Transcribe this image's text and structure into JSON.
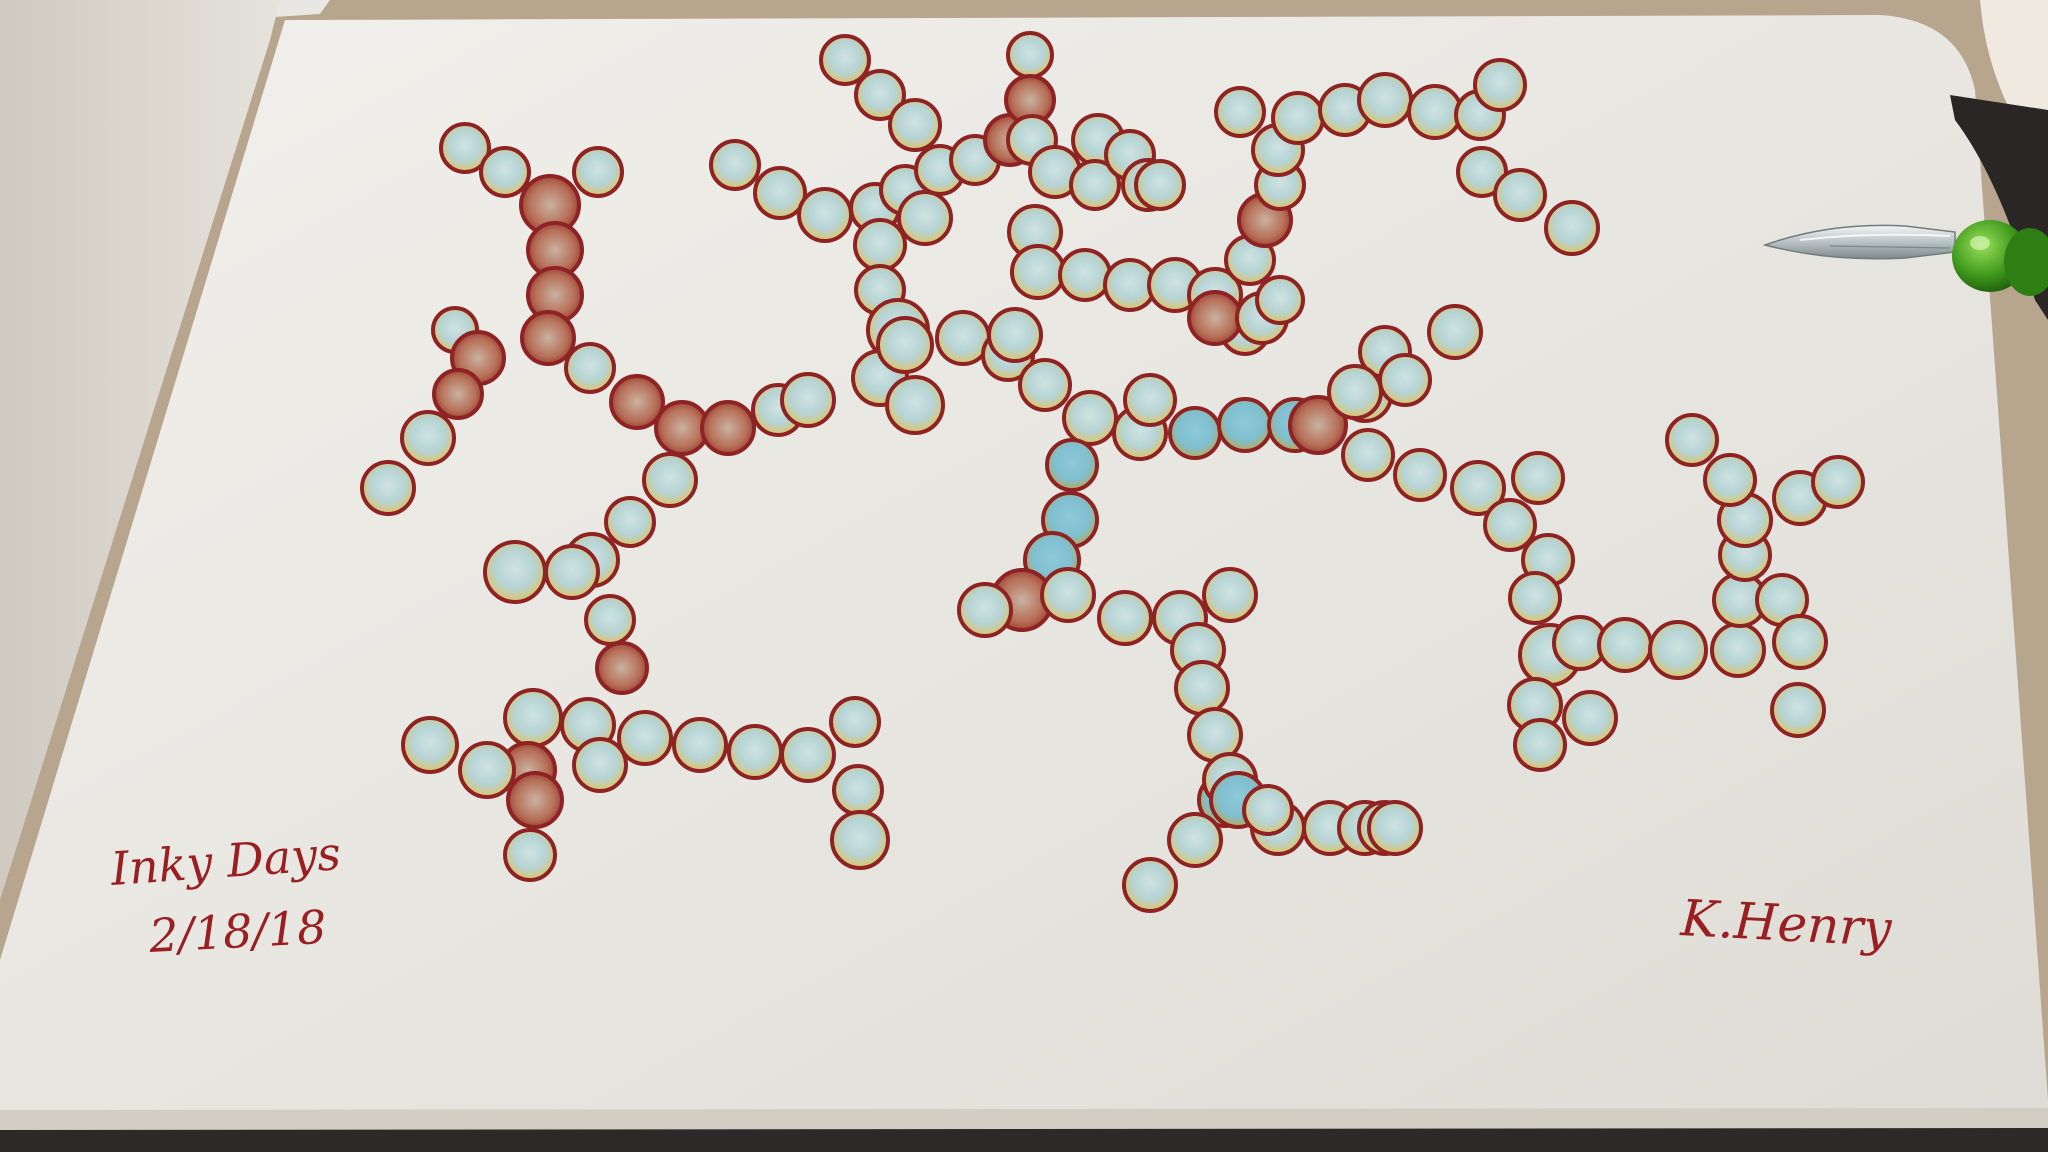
{
  "photo": {
    "subject": "ink-drawing-on-sketchbook",
    "colors": {
      "paper": "#ecebe6",
      "ink_ring": "#8f2222",
      "ink_rust": "#c0622a",
      "ink_center": "#bfd8d8",
      "ink_teal": "#7cbfd0",
      "desk": "#b7a58e"
    }
  },
  "annotations": {
    "title": "Inky Days",
    "date": "2/18/18",
    "signature": "K.Henry"
  },
  "objects": {
    "pen_icon": "glass-dip-pen-icon"
  }
}
